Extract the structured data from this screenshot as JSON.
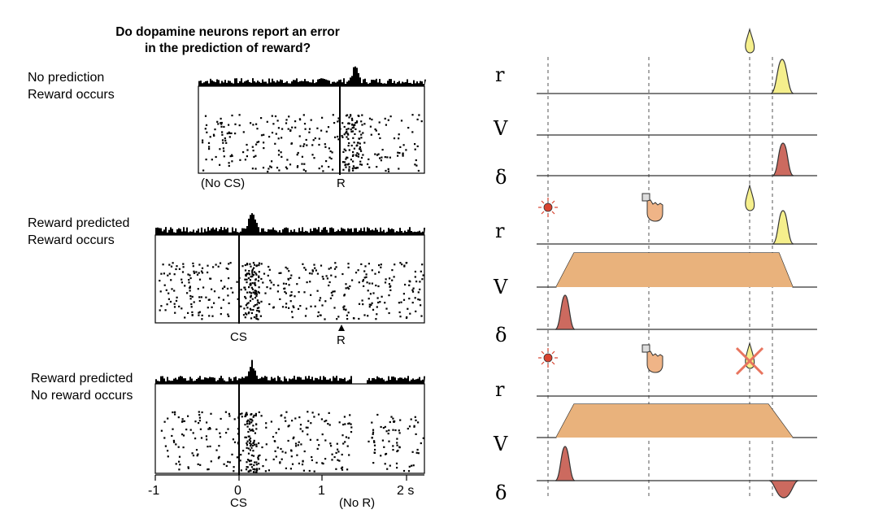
{
  "title_line1": "Do dopamine neurons report an error",
  "title_line2": "in the prediction of reward?",
  "panels": [
    {
      "condition_line1": "No prediction",
      "condition_line2": "Reward occurs",
      "markers": [
        "(No CS)",
        "R"
      ]
    },
    {
      "condition_line1": "Reward predicted",
      "condition_line2": "Reward occurs",
      "markers": [
        "CS",
        "R"
      ]
    },
    {
      "condition_line1": "Reward predicted",
      "condition_line2": "No reward occurs",
      "markers": [
        "CS",
        "(No R)"
      ]
    }
  ],
  "x_axis": {
    "ticks": [
      "-1",
      "0",
      "1",
      "2 s"
    ],
    "cs_label": "CS"
  },
  "model": {
    "signal_labels": [
      "r",
      "V",
      "δ"
    ],
    "colors": {
      "reward": "#f5ef8c",
      "value": "#e9b27c",
      "error": "#cc6a5f",
      "light": "#d9432f",
      "line": "#333333"
    },
    "icons": [
      "light-stimulus-icon",
      "hand-lever-icon",
      "juice-drop-icon",
      "cross-out-icon"
    ]
  }
}
